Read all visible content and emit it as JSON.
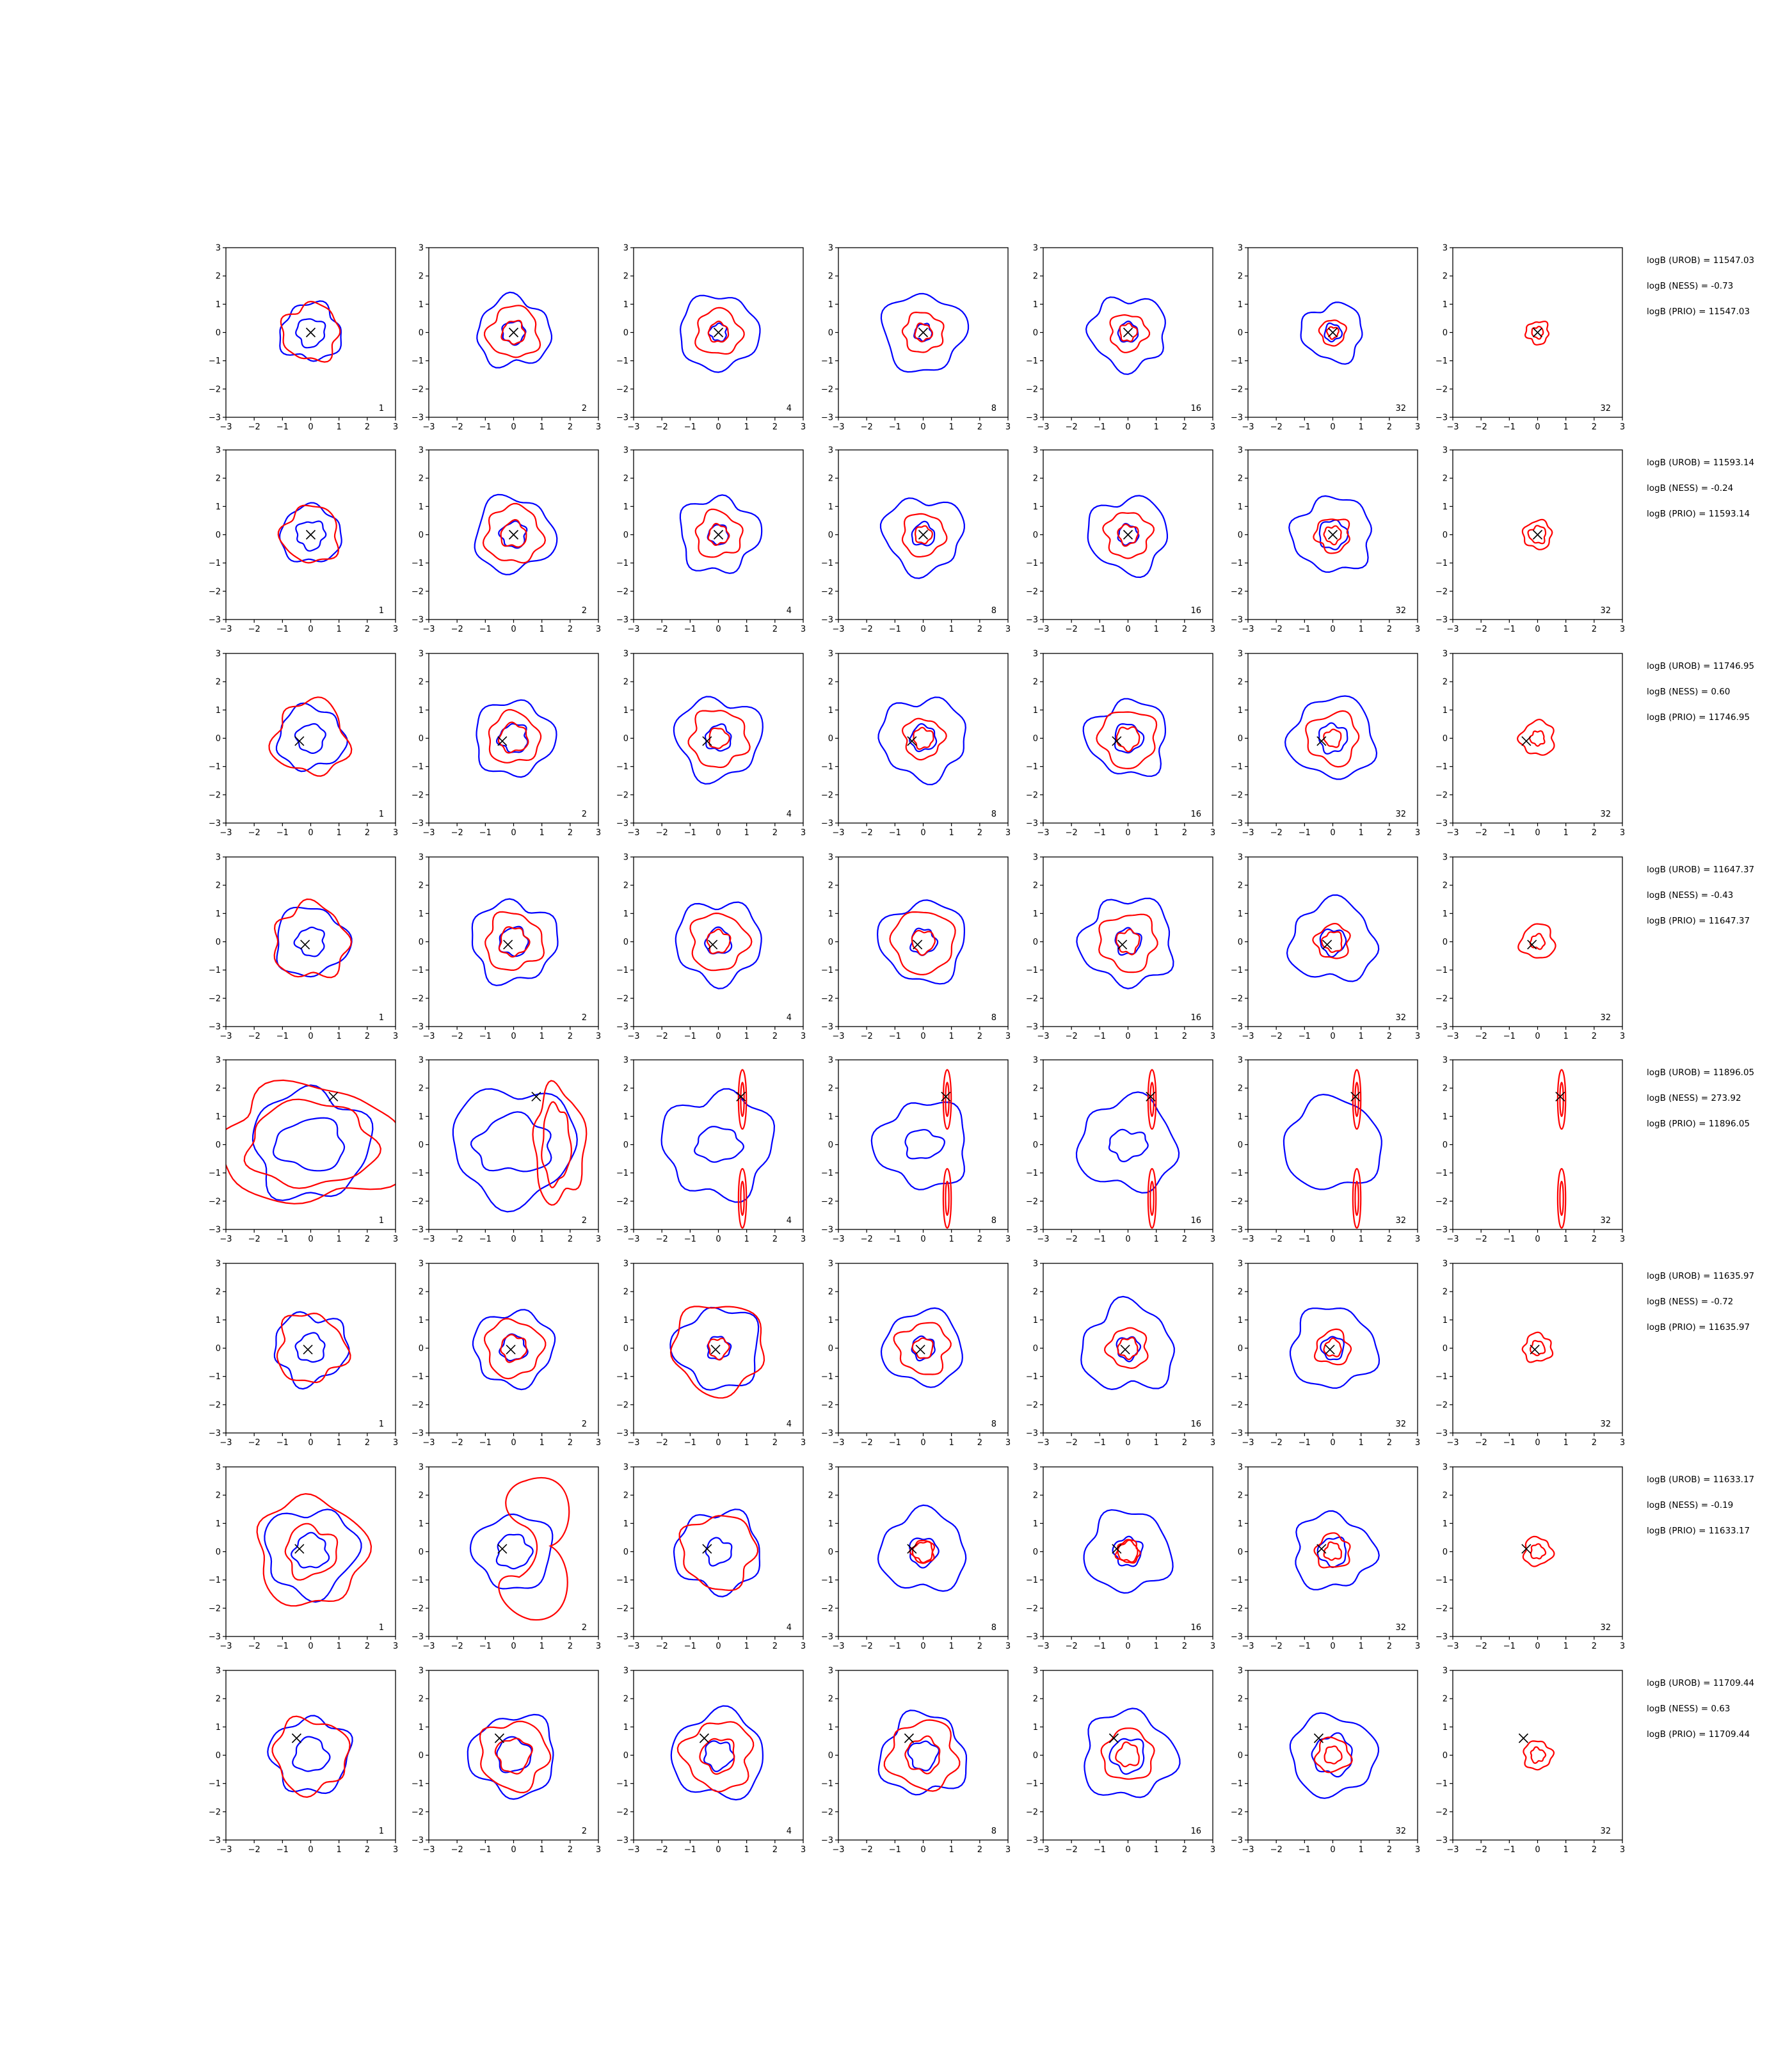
{
  "chart_data": {
    "type": "contour-grid",
    "rows": 8,
    "cols": 7,
    "xlim": [
      -3,
      3
    ],
    "ylim": [
      -3,
      3
    ],
    "xticks": [
      "−3",
      "−2",
      "−1",
      "0",
      "1",
      "2",
      "3"
    ],
    "yticks": [
      "−3",
      "−2",
      "−1",
      "0",
      "1",
      "2",
      "3"
    ],
    "panel_labels": [
      "1",
      "2",
      "4",
      "8",
      "16",
      "32",
      "32"
    ],
    "colors": {
      "outer": "#0000ff",
      "inner": "#ff0000",
      "marker": "#000000"
    },
    "panel_rows": [
      {
        "marker": [
          0.0,
          0.0
        ],
        "stats": [
          "logB (UROB) = 11547.03",
          "logB (NESS) = -0.73",
          "logB (PRIO) = 11547.03"
        ],
        "blue_outer": [
          1.0,
          1.2,
          1.3,
          1.35,
          1.25,
          1.0,
          0.0
        ],
        "blue_inner": [
          0.5,
          0.4,
          0.3,
          0.3,
          0.35,
          0.3,
          0.0
        ],
        "red_outer": [
          1.0,
          0.9,
          0.8,
          0.7,
          0.65,
          0.45,
          0.4
        ],
        "red_inner": [
          0.0,
          0.4,
          0.35,
          0.3,
          0.3,
          0.2,
          0.2
        ],
        "red_extra": []
      },
      {
        "marker": [
          0.0,
          0.0
        ],
        "stats": [
          "logB (UROB) = 11593.14",
          "logB (NESS) = -0.24",
          "logB (PRIO) = 11593.14"
        ],
        "blue_outer": [
          1.0,
          1.3,
          1.3,
          1.3,
          1.3,
          1.3,
          0.0
        ],
        "blue_inner": [
          0.5,
          0.45,
          0.35,
          0.4,
          0.35,
          0.5,
          0.0
        ],
        "red_outer": [
          1.0,
          1.0,
          0.8,
          0.75,
          0.8,
          0.6,
          0.5
        ],
        "red_inner": [
          0.0,
          0.45,
          0.35,
          0.3,
          0.35,
          0.3,
          0.3
        ],
        "red_extra": []
      },
      {
        "marker": [
          -0.4,
          -0.1
        ],
        "stats": [
          "logB (UROB) = 11746.95",
          "logB (NESS) = 0.60",
          "logB (PRIO) = 11746.95"
        ],
        "blue_outer": [
          1.1,
          1.3,
          1.4,
          1.4,
          1.3,
          1.4,
          0.0
        ],
        "blue_inner": [
          0.5,
          0.5,
          0.45,
          0.45,
          0.5,
          0.5,
          0.0
        ],
        "red_outer": [
          1.3,
          0.9,
          1.0,
          0.7,
          1.0,
          0.9,
          0.6
        ],
        "red_inner": [
          0.0,
          0.5,
          0.35,
          0.35,
          0.4,
          0.3,
          0.25
        ],
        "red_extra": []
      },
      {
        "marker": [
          -0.2,
          -0.1
        ],
        "stats": [
          "logB (UROB) = 11647.37",
          "logB (NESS) = -0.43",
          "logB (PRIO) = 11647.37"
        ],
        "blue_outer": [
          1.2,
          1.4,
          1.4,
          1.4,
          1.5,
          1.4,
          0.0
        ],
        "blue_inner": [
          0.5,
          0.5,
          0.45,
          0.45,
          0.45,
          0.45,
          0.0
        ],
        "red_outer": [
          1.3,
          1.0,
          1.0,
          1.1,
          1.0,
          0.6,
          0.6
        ],
        "red_inner": [
          0.0,
          0.5,
          0.4,
          0.4,
          0.4,
          0.35,
          0.25
        ],
        "red_extra": []
      },
      {
        "marker": [
          0.8,
          1.7
        ],
        "stats": [
          "logB (UROB) = 11896.05",
          "logB (NESS) = 273.92",
          "logB (PRIO) = 11896.05"
        ],
        "blue_outer": [
          1.9,
          2.0,
          1.8,
          1.5,
          1.6,
          1.6,
          0.0
        ],
        "blue_inner": [
          0.9,
          1.0,
          0.6,
          0.5,
          0.5,
          0.0,
          0.0
        ],
        "red_outer": [
          2.4,
          0.0,
          0.0,
          0.0,
          0.0,
          0.0,
          0.0
        ],
        "red_inner": [
          1.5,
          0.0,
          0.0,
          0.0,
          0.0,
          0.0,
          0.0
        ],
        "red_extra": [
          [],
          [
            1.1,
            1.5
          ],
          [
            1.6,
            -1.9
          ],
          [
            1.6,
            -1.9
          ],
          [
            1.6,
            -1.9
          ],
          [
            1.6,
            -1.9
          ],
          [
            1.6,
            -1.9
          ]
        ]
      },
      {
        "marker": [
          -0.1,
          -0.05
        ],
        "stats": [
          "logB (UROB) = 11635.97",
          "logB (NESS) = -0.72",
          "logB (PRIO) = 11635.97"
        ],
        "blue_outer": [
          1.2,
          1.3,
          1.4,
          1.3,
          1.5,
          1.4,
          0.0
        ],
        "blue_inner": [
          0.5,
          0.45,
          0.4,
          0.4,
          0.4,
          0.4,
          0.0
        ],
        "red_outer": [
          1.2,
          1.0,
          1.6,
          0.9,
          0.7,
          0.6,
          0.5
        ],
        "red_inner": [
          0.0,
          0.45,
          0.35,
          0.35,
          0.35,
          0.3,
          0.25
        ],
        "red_extra": []
      },
      {
        "marker": [
          -0.4,
          0.1
        ],
        "stats": [
          "logB (UROB) = 11633.17",
          "logB (NESS) = -0.19",
          "logB (PRIO) = 11633.17"
        ],
        "blue_outer": [
          1.5,
          1.3,
          1.4,
          1.4,
          1.4,
          1.3,
          0.0
        ],
        "blue_inner": [
          0.6,
          0.6,
          0.45,
          0.5,
          0.5,
          0.5,
          0.0
        ],
        "red_outer": [
          1.9,
          0.0,
          1.3,
          0.4,
          0.4,
          0.6,
          0.5
        ],
        "red_inner": [
          0.9,
          0.0,
          0.0,
          0.35,
          0.35,
          0.3,
          0.25
        ],
        "red_extra": [
          [],
          [
            1.2,
            0.0
          ],
          [],
          [],
          [],
          [],
          []
        ]
      },
      {
        "marker": [
          -0.5,
          0.6
        ],
        "stats": [
          "logB (UROB) = 11709.44",
          "logB (NESS) = 0.63",
          "logB (PRIO) = 11709.44"
        ],
        "blue_outer": [
          1.3,
          1.4,
          1.5,
          1.4,
          1.5,
          1.4,
          0.0
        ],
        "blue_inner": [
          0.6,
          0.6,
          0.5,
          0.5,
          0.6,
          0.7,
          0.0
        ],
        "red_outer": [
          1.3,
          1.2,
          1.2,
          1.2,
          0.9,
          0.6,
          0.5
        ],
        "red_inner": [
          0.0,
          0.6,
          0.6,
          0.6,
          0.4,
          0.3,
          0.25
        ],
        "red_extra": []
      }
    ]
  }
}
